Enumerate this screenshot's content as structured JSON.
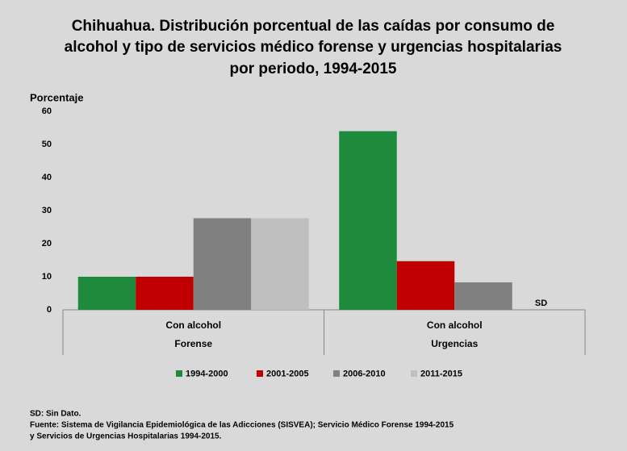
{
  "chart_data": {
    "type": "bar",
    "title": [
      "Chihuahua. Distribución porcentual de las caídas por consumo de",
      "alcohol y tipo de servicios médico forense y urgencias hospitalarias",
      "por periodo,  1994-2015"
    ],
    "y_label": "Porcentaje",
    "categories": [
      "Con alcohol",
      "Con alcohol"
    ],
    "groups": [
      "Forense",
      "Urgencias"
    ],
    "series": [
      {
        "name": "1994-2000",
        "color": "#1e8a3c",
        "values": [
          10,
          54
        ]
      },
      {
        "name": "2001-2005",
        "color": "#c00000",
        "values": [
          10,
          14.7
        ]
      },
      {
        "name": "2006-2010",
        "color": "#808080",
        "values": [
          27.7,
          8.3
        ]
      },
      {
        "name": "2011-2015",
        "color": "#bfbfbf",
        "values": [
          27.7,
          null
        ]
      }
    ],
    "missing_label": "SD",
    "ylim": [
      0,
      60
    ],
    "yticks": [
      0,
      10,
      20,
      30,
      40,
      50,
      60
    ],
    "grid": false,
    "legend": "bottom",
    "notes": [
      "SD: Sin Dato.",
      "Fuente: Sistema de Vigilancia Epidemiológica de las Adicciones (SISVEA); Servicio Médico Forense 1994-2015",
      "y Servicios de Urgencias Hospitalarias 1994-2015."
    ]
  }
}
